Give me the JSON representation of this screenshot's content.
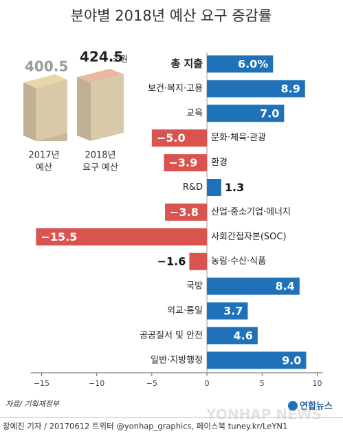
{
  "chart_data": {
    "type": "bar",
    "orientation": "horizontal",
    "title": "분야별 2018년 예산 요구 증감률",
    "categories": [
      "총 지출",
      "보건·복지·고용",
      "교육",
      "문화·체육·관광",
      "환경",
      "R&D",
      "산업·중소기업·에너지",
      "사회간접자본(SOC)",
      "농림·수산·식품",
      "국방",
      "외교·통일",
      "공공질서 및 안전",
      "일반·지방행정"
    ],
    "values": [
      6.0,
      8.9,
      7.0,
      -5.0,
      -3.9,
      1.3,
      -3.8,
      -15.5,
      -1.6,
      8.4,
      3.7,
      4.6,
      9.0
    ],
    "value_labels": [
      "6.0%",
      "8.9",
      "7.0",
      "−5.0",
      "−3.9",
      "1.3",
      "−3.8",
      "−15.5",
      "−1.6",
      "8.4",
      "3.7",
      "4.6",
      "9.0"
    ],
    "positive_color": "#1f72b8",
    "negative_color": "#d9534f",
    "xlim": [
      -16,
      10.5
    ],
    "xticks": [
      {
        "value": -15,
        "label": "−15"
      },
      {
        "value": -10,
        "label": "−10"
      },
      {
        "value": -5,
        "label": "−5"
      },
      0,
      5,
      10
    ]
  },
  "inset": {
    "value_2017": "400.5",
    "value_2018": "424.5",
    "unit_2018": "조원",
    "label_2017": [
      "2017년",
      "예산"
    ],
    "label_2018": [
      "2018년",
      "요구 예산"
    ]
  },
  "source": "자료/ 기획재정부",
  "logo": "연합뉴스",
  "watermark": "YONHAP NEWS",
  "footer": "장예진 기자 / 20170612 트위터 @yonhap_graphics, 페이스북 tuney.kr/LeYN1"
}
